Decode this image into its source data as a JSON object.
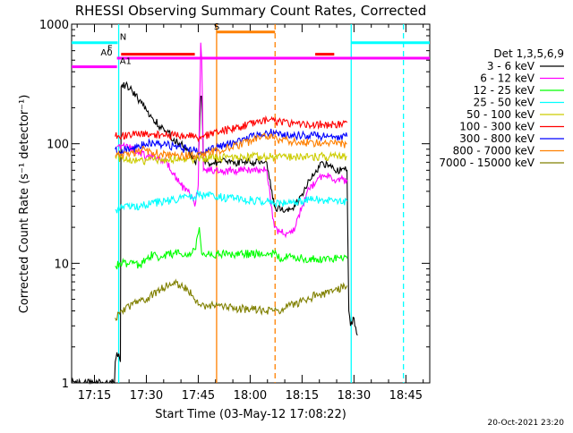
{
  "chart_data": {
    "type": "line",
    "title": "RHESSI Observing Summary Count Rates, Corrected",
    "xlabel": "Start Time (03-May-12 17:08:22)",
    "ylabel": "Corrected Count Rate (s⁻¹ detector⁻¹)",
    "y_scale": "log",
    "ylim": [
      1,
      1000
    ],
    "xlim_minutes": [
      1028.4,
      1131.9
    ],
    "x_ticks": [
      {
        "label": "17:15",
        "minutes": 1035
      },
      {
        "label": "17:30",
        "minutes": 1050
      },
      {
        "label": "17:45",
        "minutes": 1065
      },
      {
        "label": "18:00",
        "minutes": 1080
      },
      {
        "label": "18:15",
        "minutes": 1095
      },
      {
        "label": "18:30",
        "minutes": 1110
      },
      {
        "label": "18:45",
        "minutes": 1125
      }
    ],
    "y_ticks": [
      {
        "label": "1",
        "value": 1
      },
      {
        "label": "10",
        "value": 10
      },
      {
        "label": "100",
        "value": 100
      },
      {
        "label": "1000",
        "value": 1000
      }
    ],
    "legend_title": "Det 1,3,5,6,9",
    "legend_placement": "right",
    "timestamp": "20-Oct-2021 23:20",
    "series": [
      {
        "name": "3 - 6 keV",
        "color": "#000000",
        "points": [
          [
            1028.4,
            1
          ],
          [
            1040.8,
            1
          ],
          [
            1041.0,
            1.5
          ],
          [
            1041.5,
            1.8
          ],
          [
            1042.5,
            1.5
          ],
          [
            1042.7,
            300
          ],
          [
            1044,
            310
          ],
          [
            1046,
            270
          ],
          [
            1048,
            230
          ],
          [
            1050,
            190
          ],
          [
            1052,
            160
          ],
          [
            1054,
            140
          ],
          [
            1056,
            125
          ],
          [
            1058,
            110
          ],
          [
            1060,
            100
          ],
          [
            1062,
            90
          ],
          [
            1063,
            80
          ],
          [
            1064,
            70
          ],
          [
            1065,
            75
          ],
          [
            1065.7,
            250
          ],
          [
            1066,
            250
          ],
          [
            1066.5,
            70
          ],
          [
            1071,
            70
          ],
          [
            1084.8,
            70
          ],
          [
            1087,
            30
          ],
          [
            1089,
            28
          ],
          [
            1091,
            27
          ],
          [
            1093,
            30
          ],
          [
            1095,
            38
          ],
          [
            1097,
            50
          ],
          [
            1099,
            60
          ],
          [
            1101,
            70
          ],
          [
            1103,
            65
          ],
          [
            1104.3,
            60
          ],
          [
            1108,
            60
          ],
          [
            1108.5,
            4
          ],
          [
            1109,
            3
          ],
          [
            1110,
            3.5
          ],
          [
            1111,
            2.5
          ]
        ]
      },
      {
        "name": "6 - 12 keV",
        "color": "#ff00ff",
        "points": [
          [
            1041.5,
            95
          ],
          [
            1045,
            92
          ],
          [
            1048,
            85
          ],
          [
            1050,
            78
          ],
          [
            1052,
            80
          ],
          [
            1054,
            75
          ],
          [
            1056,
            70
          ],
          [
            1058,
            55
          ],
          [
            1060,
            45
          ],
          [
            1062,
            40
          ],
          [
            1063,
            35
          ],
          [
            1064,
            30
          ],
          [
            1065,
            45
          ],
          [
            1065.7,
            700
          ],
          [
            1066,
            500
          ],
          [
            1066.5,
            60
          ],
          [
            1084.8,
            60
          ],
          [
            1087,
            20
          ],
          [
            1089,
            18
          ],
          [
            1091,
            18
          ],
          [
            1093,
            20
          ],
          [
            1095,
            30
          ],
          [
            1097,
            42
          ],
          [
            1099,
            48
          ],
          [
            1101,
            55
          ],
          [
            1103,
            55
          ],
          [
            1104.3,
            50
          ],
          [
            1108,
            50
          ]
        ]
      },
      {
        "name": "12 - 25 keV",
        "color": "#00ff00",
        "points": [
          [
            1041,
            9.5
          ],
          [
            1043,
            10
          ],
          [
            1046,
            10
          ],
          [
            1048,
            9.5
          ],
          [
            1050,
            11
          ],
          [
            1052,
            12
          ],
          [
            1054,
            11
          ],
          [
            1056,
            12
          ],
          [
            1058,
            12
          ],
          [
            1060,
            12
          ],
          [
            1062,
            12
          ],
          [
            1064,
            13
          ],
          [
            1065.3,
            20
          ],
          [
            1066,
            12
          ],
          [
            1084.8,
            12
          ],
          [
            1087,
            12
          ],
          [
            1089,
            11
          ],
          [
            1091,
            11.5
          ],
          [
            1093,
            11
          ],
          [
            1095,
            11
          ],
          [
            1097,
            10.5
          ],
          [
            1099,
            11
          ],
          [
            1101,
            11
          ],
          [
            1103,
            10.5
          ],
          [
            1104.3,
            11
          ],
          [
            1108,
            11
          ]
        ]
      },
      {
        "name": "25 - 50 keV",
        "color": "#00ffff",
        "points": [
          [
            1041,
            28
          ],
          [
            1043,
            29
          ],
          [
            1046,
            30
          ],
          [
            1048,
            30
          ],
          [
            1050,
            31
          ],
          [
            1052,
            32
          ],
          [
            1054,
            33
          ],
          [
            1056,
            33
          ],
          [
            1058,
            34
          ],
          [
            1060,
            35
          ],
          [
            1062,
            36
          ],
          [
            1064,
            36
          ],
          [
            1065.5,
            40
          ],
          [
            1066,
            37
          ],
          [
            1084.8,
            33
          ],
          [
            1087,
            32
          ],
          [
            1089,
            32
          ],
          [
            1091,
            32
          ],
          [
            1093,
            33
          ],
          [
            1095,
            33
          ],
          [
            1097,
            34
          ],
          [
            1099,
            34
          ],
          [
            1101,
            34
          ],
          [
            1103,
            34
          ],
          [
            1104.3,
            33
          ],
          [
            1108,
            33
          ]
        ]
      },
      {
        "name": "50 - 100 keV",
        "color": "#cccc00",
        "points": [
          [
            1041,
            78
          ],
          [
            1043,
            75
          ],
          [
            1046,
            72
          ],
          [
            1048,
            72
          ],
          [
            1050,
            73
          ],
          [
            1052,
            73
          ],
          [
            1054,
            74
          ],
          [
            1056,
            74
          ],
          [
            1058,
            75
          ],
          [
            1060,
            75
          ],
          [
            1062,
            75
          ],
          [
            1064,
            75
          ],
          [
            1066,
            76
          ],
          [
            1084.8,
            78
          ],
          [
            1087,
            77
          ],
          [
            1089,
            77
          ],
          [
            1091,
            77
          ],
          [
            1093,
            77
          ],
          [
            1095,
            77
          ],
          [
            1097,
            77
          ],
          [
            1099,
            78
          ],
          [
            1101,
            78
          ],
          [
            1103,
            78
          ],
          [
            1104.3,
            78
          ],
          [
            1108,
            78
          ]
        ]
      },
      {
        "name": "100 - 300 keV",
        "color": "#ff0000",
        "points": [
          [
            1041,
            115
          ],
          [
            1043,
            118
          ],
          [
            1046,
            120
          ],
          [
            1048,
            118
          ],
          [
            1050,
            120
          ],
          [
            1052,
            120
          ],
          [
            1054,
            118
          ],
          [
            1056,
            118
          ],
          [
            1058,
            118
          ],
          [
            1060,
            118
          ],
          [
            1062,
            118
          ],
          [
            1064,
            115
          ],
          [
            1066,
            115
          ],
          [
            1084.8,
            160
          ],
          [
            1087,
            155
          ],
          [
            1089,
            150
          ],
          [
            1091,
            150
          ],
          [
            1093,
            148
          ],
          [
            1095,
            148
          ],
          [
            1097,
            145
          ],
          [
            1099,
            145
          ],
          [
            1101,
            145
          ],
          [
            1103,
            145
          ],
          [
            1104.3,
            145
          ],
          [
            1108,
            150
          ]
        ]
      },
      {
        "name": "300 - 800 keV",
        "color": "#0000ff",
        "points": [
          [
            1041,
            90
          ],
          [
            1043,
            88
          ],
          [
            1046,
            90
          ],
          [
            1048,
            95
          ],
          [
            1050,
            100
          ],
          [
            1052,
            102
          ],
          [
            1054,
            100
          ],
          [
            1056,
            98
          ],
          [
            1058,
            95
          ],
          [
            1060,
            92
          ],
          [
            1062,
            90
          ],
          [
            1064,
            88
          ],
          [
            1066,
            85
          ],
          [
            1084.8,
            125
          ],
          [
            1087,
            122
          ],
          [
            1089,
            120
          ],
          [
            1091,
            118
          ],
          [
            1093,
            118
          ],
          [
            1095,
            117
          ],
          [
            1097,
            117
          ],
          [
            1099,
            117
          ],
          [
            1101,
            116
          ],
          [
            1103,
            116
          ],
          [
            1104.3,
            115
          ],
          [
            1108,
            115
          ]
        ]
      },
      {
        "name": "800 - 7000 keV",
        "color": "#ff8000",
        "points": [
          [
            1041,
            80
          ],
          [
            1043,
            82
          ],
          [
            1046,
            84
          ],
          [
            1048,
            88
          ],
          [
            1050,
            88
          ],
          [
            1052,
            85
          ],
          [
            1054,
            82
          ],
          [
            1056,
            80
          ],
          [
            1058,
            80
          ],
          [
            1060,
            80
          ],
          [
            1062,
            80
          ],
          [
            1064,
            80
          ],
          [
            1066,
            80
          ],
          [
            1084.8,
            115
          ],
          [
            1087,
            110
          ],
          [
            1089,
            108
          ],
          [
            1091,
            106
          ],
          [
            1093,
            105
          ],
          [
            1095,
            104
          ],
          [
            1097,
            103
          ],
          [
            1099,
            102
          ],
          [
            1101,
            102
          ],
          [
            1103,
            101
          ],
          [
            1104.3,
            100
          ],
          [
            1108,
            100
          ]
        ]
      },
      {
        "name": "7000 - 15000 keV",
        "color": "#808000",
        "points": [
          [
            1041,
            3.5
          ],
          [
            1043,
            4
          ],
          [
            1046,
            4.5
          ],
          [
            1048,
            5
          ],
          [
            1050,
            5
          ],
          [
            1052,
            5.5
          ],
          [
            1054,
            6
          ],
          [
            1056,
            6.5
          ],
          [
            1058,
            7
          ],
          [
            1060,
            6.5
          ],
          [
            1062,
            6
          ],
          [
            1064,
            5
          ],
          [
            1066,
            4.5
          ],
          [
            1084.8,
            4
          ],
          [
            1087,
            4
          ],
          [
            1089,
            4
          ],
          [
            1091,
            4.5
          ],
          [
            1093,
            4.5
          ],
          [
            1095,
            5
          ],
          [
            1097,
            5
          ],
          [
            1099,
            5.5
          ],
          [
            1101,
            5.5
          ],
          [
            1103,
            6
          ],
          [
            1104.3,
            6
          ],
          [
            1108,
            6.5
          ]
        ]
      }
    ],
    "flags": [
      {
        "label": "N",
        "color": "#00ffff",
        "segments": [
          [
            1028.4,
            1041.7
          ],
          [
            1109.2,
            1131.9
          ]
        ],
        "level": 700,
        "label_at": 1042.3
      },
      {
        "label": "F",
        "color": "#ff0000",
        "segments": [
          [
            1042.7,
            1064.0
          ],
          [
            1098.8,
            1104.3
          ]
        ],
        "level": 560,
        "label_at": 1040.2
      },
      {
        "label": "A0",
        "color": "#ff00ff",
        "segments": [
          [
            1041.5,
            1131.9
          ]
        ],
        "level": 520,
        "label_at": 1040.2
      },
      {
        "label": "A1",
        "color": "#ff00ff",
        "segments": [
          [
            1028.4,
            1041.5
          ]
        ],
        "level": 440,
        "label_at": 1042.3
      },
      {
        "label": "S",
        "color": "#ff8000",
        "segments": [
          [
            1070.3,
            1087.2
          ]
        ],
        "level": 860,
        "label_at": 1069.5
      }
    ],
    "vertical_markers": [
      {
        "minutes": 1042.0,
        "color": "#00ffff",
        "style": "solid"
      },
      {
        "minutes": 1070.3,
        "color": "#ff8000",
        "style": "solid"
      },
      {
        "minutes": 1087.2,
        "color": "#ff8000",
        "style": "dashed"
      },
      {
        "minutes": 1109.2,
        "color": "#00ffff",
        "style": "solid"
      },
      {
        "minutes": 1124.3,
        "color": "#00ffff",
        "style": "dashed"
      }
    ]
  }
}
